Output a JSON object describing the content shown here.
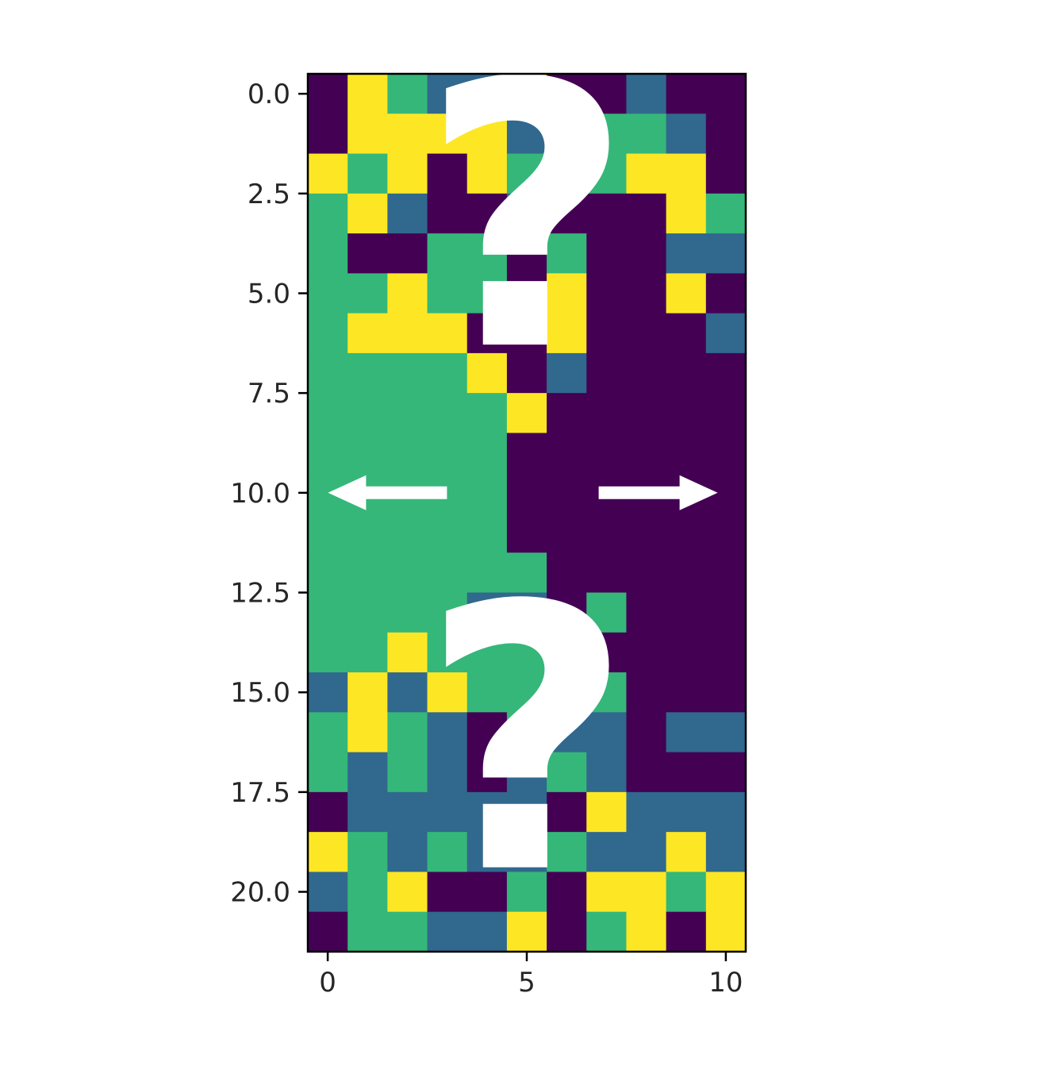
{
  "chart_data": {
    "type": "heatmap",
    "title": "",
    "xlabel": "",
    "ylabel": "",
    "colormap": "viridis",
    "palette": [
      "#440154",
      "#31688e",
      "#35b779",
      "#fde725"
    ],
    "levels": [
      0,
      1,
      2,
      3
    ],
    "xlim": [
      -0.5,
      10.5
    ],
    "ylim": [
      21.5,
      -0.5
    ],
    "x_ticks": [
      0,
      5,
      10
    ],
    "x_tick_labels": [
      "0",
      "5",
      "10"
    ],
    "y_ticks": [
      0,
      2.5,
      5,
      7.5,
      10,
      12.5,
      15,
      17.5,
      20
    ],
    "y_tick_labels": [
      "0.0",
      "2.5",
      "5.0",
      "7.5",
      "10.0",
      "12.5",
      "15.0",
      "17.5",
      "20.0"
    ],
    "grid": false,
    "values": [
      [
        0,
        3,
        2,
        1,
        1,
        3,
        0,
        0,
        1,
        0,
        0
      ],
      [
        0,
        3,
        3,
        3,
        3,
        1,
        0,
        2,
        2,
        1,
        0
      ],
      [
        3,
        2,
        3,
        0,
        3,
        2,
        0,
        2,
        3,
        3,
        0
      ],
      [
        2,
        3,
        1,
        0,
        0,
        1,
        0,
        0,
        0,
        3,
        2
      ],
      [
        2,
        0,
        0,
        2,
        2,
        0,
        2,
        0,
        0,
        1,
        1
      ],
      [
        2,
        2,
        3,
        2,
        2,
        0,
        3,
        0,
        0,
        3,
        0
      ],
      [
        2,
        3,
        3,
        3,
        0,
        0,
        3,
        0,
        0,
        0,
        1
      ],
      [
        2,
        2,
        2,
        2,
        3,
        0,
        1,
        0,
        0,
        0,
        0
      ],
      [
        2,
        2,
        2,
        2,
        2,
        3,
        0,
        0,
        0,
        0,
        0
      ],
      [
        2,
        2,
        2,
        2,
        2,
        0,
        0,
        0,
        0,
        0,
        0
      ],
      [
        2,
        2,
        2,
        2,
        2,
        0,
        0,
        0,
        0,
        0,
        0
      ],
      [
        2,
        2,
        2,
        2,
        2,
        0,
        0,
        0,
        0,
        0,
        0
      ],
      [
        2,
        2,
        2,
        2,
        2,
        2,
        0,
        0,
        0,
        0,
        0
      ],
      [
        2,
        2,
        2,
        2,
        1,
        1,
        0,
        2,
        0,
        0,
        0
      ],
      [
        2,
        2,
        3,
        2,
        2,
        2,
        0,
        0,
        0,
        0,
        0
      ],
      [
        1,
        3,
        1,
        3,
        2,
        2,
        3,
        2,
        0,
        0,
        0
      ],
      [
        2,
        3,
        2,
        1,
        0,
        2,
        1,
        1,
        0,
        1,
        1
      ],
      [
        2,
        1,
        2,
        1,
        0,
        1,
        2,
        1,
        0,
        0,
        0
      ],
      [
        0,
        1,
        1,
        1,
        1,
        1,
        0,
        3,
        1,
        1,
        1
      ],
      [
        3,
        2,
        1,
        2,
        1,
        1,
        2,
        1,
        1,
        3,
        1
      ],
      [
        1,
        2,
        3,
        0,
        0,
        2,
        0,
        3,
        3,
        2,
        3
      ],
      [
        0,
        2,
        2,
        1,
        1,
        3,
        0,
        2,
        3,
        0,
        3
      ]
    ],
    "annotations": [
      {
        "text": "?",
        "at": [
          5,
          3.7
        ]
      },
      {
        "text": "?",
        "at": [
          5,
          16.8
        ]
      },
      {
        "text": "←",
        "at": [
          1.5,
          10
        ]
      },
      {
        "text": "→",
        "at": [
          8.3,
          10
        ]
      }
    ]
  }
}
